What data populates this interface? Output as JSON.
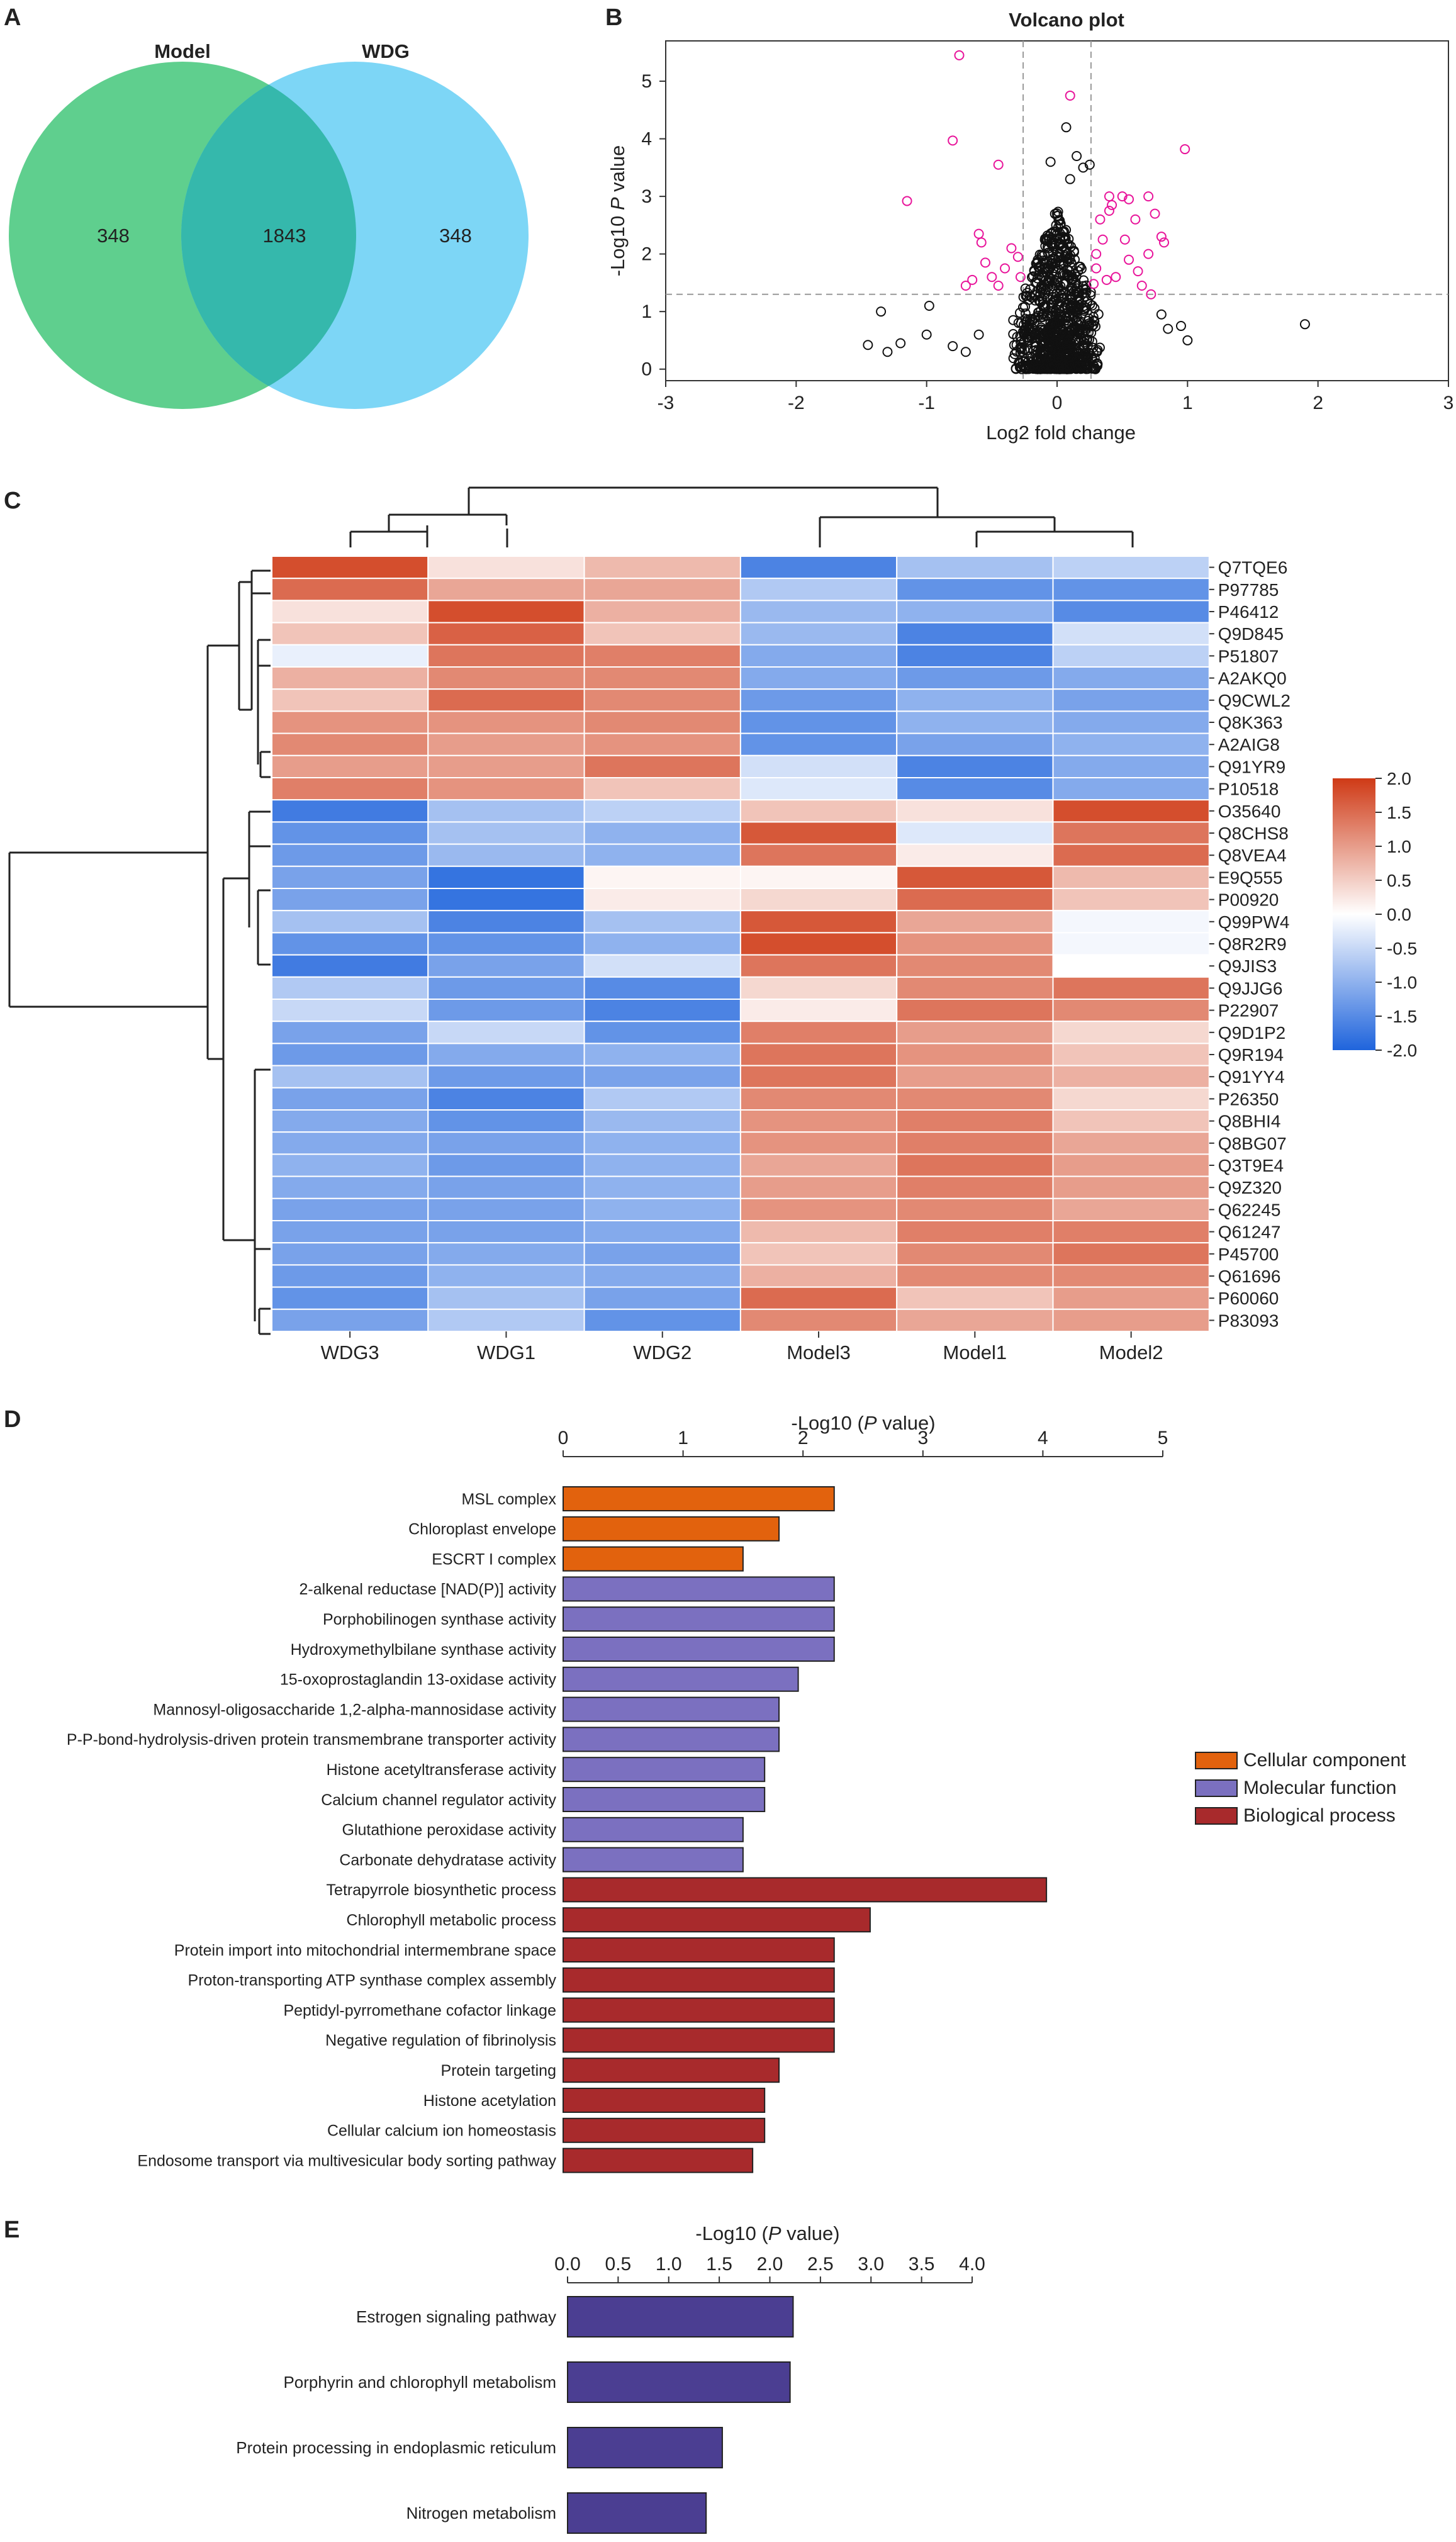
{
  "chart_data": [
    {
      "panel": "A",
      "type": "venn",
      "sets": [
        "Model",
        "WDG"
      ],
      "counts": {
        "only_left": "348",
        "intersection": "1843",
        "only_right": "348"
      },
      "colors": {
        "left": "#5fcf8e",
        "right": "#7dd6f6",
        "overlap": "#35b8ac"
      }
    },
    {
      "panel": "B",
      "type": "scatter",
      "title": "Volcano plot",
      "xlabel": "Log2 fold change",
      "ylabel_prefix": "-Log10 ",
      "ylabel_italic": "P",
      "ylabel_suffix": " value",
      "xlim": [
        -3,
        3
      ],
      "ylim": [
        -0.2,
        5.7
      ],
      "xticks": [
        "-3",
        "-2",
        "-1",
        "0",
        "1",
        "2",
        "3"
      ],
      "yticks": [
        "0",
        "1",
        "2",
        "3",
        "4",
        "5"
      ],
      "thresholds": {
        "fc_left": -0.26,
        "fc_right": 0.26,
        "p_line": 1.3
      },
      "significant": [
        [
          -0.75,
          5.45
        ],
        [
          0.1,
          4.75
        ],
        [
          -0.8,
          3.97
        ],
        [
          -0.45,
          3.55
        ],
        [
          0.98,
          3.82
        ],
        [
          -1.15,
          2.92
        ],
        [
          -0.6,
          2.35
        ],
        [
          -0.58,
          2.2
        ],
        [
          0.4,
          2.75
        ],
        [
          0.5,
          3.0
        ],
        [
          0.6,
          2.6
        ],
        [
          0.75,
          2.7
        ],
        [
          0.7,
          2.0
        ],
        [
          0.55,
          1.9
        ],
        [
          0.35,
          2.25
        ],
        [
          0.3,
          1.75
        ],
        [
          0.45,
          1.6
        ],
        [
          0.65,
          1.45
        ],
        [
          0.72,
          1.3
        ],
        [
          -0.5,
          1.6
        ],
        [
          -0.4,
          1.75
        ],
        [
          -0.3,
          1.95
        ],
        [
          -0.65,
          1.55
        ],
        [
          -0.7,
          1.45
        ],
        [
          -0.35,
          2.1
        ],
        [
          0.38,
          1.55
        ],
        [
          0.52,
          2.25
        ],
        [
          0.8,
          2.3
        ],
        [
          0.82,
          2.2
        ],
        [
          0.4,
          3.0
        ],
        [
          -0.55,
          1.85
        ],
        [
          0.3,
          2.0
        ],
        [
          0.42,
          2.85
        ],
        [
          0.62,
          1.7
        ],
        [
          0.28,
          1.48
        ],
        [
          -0.28,
          1.6
        ],
        [
          -0.45,
          1.45
        ],
        [
          0.55,
          2.95
        ],
        [
          0.33,
          2.6
        ],
        [
          0.7,
          3.0
        ]
      ],
      "nonsig_outliers": [
        [
          -1.45,
          0.42
        ],
        [
          -1.2,
          0.45
        ],
        [
          -1.35,
          1.0
        ],
        [
          -0.98,
          1.1
        ],
        [
          -1.0,
          0.6
        ],
        [
          -0.8,
          0.4
        ],
        [
          -0.6,
          0.6
        ],
        [
          1.9,
          0.78
        ],
        [
          1.0,
          0.5
        ],
        [
          0.95,
          0.75
        ],
        [
          0.85,
          0.7
        ],
        [
          0.8,
          0.95
        ],
        [
          0.07,
          4.2
        ],
        [
          0.15,
          3.7
        ],
        [
          0.2,
          3.5
        ],
        [
          -0.05,
          3.6
        ],
        [
          0.1,
          3.3
        ],
        [
          0.25,
          3.55
        ],
        [
          -1.3,
          0.3
        ],
        [
          -0.7,
          0.3
        ]
      ],
      "colors": {
        "significant": "#e8149a",
        "other": "#111111"
      }
    },
    {
      "panel": "C",
      "type": "heatmap",
      "columns": [
        "WDG3",
        "WDG1",
        "WDG2",
        "Model3",
        "Model1",
        "Model2"
      ],
      "rows": [
        "Q7TQE6",
        "P97785",
        "P46412",
        "Q9D845",
        "P51807",
        "A2AKQ0",
        "Q9CWL2",
        "Q8K363",
        "A2AIG8",
        "Q91YR9",
        "P10518",
        "O35640",
        "Q8CHS8",
        "Q8VEA4",
        "E9Q555",
        "P00920",
        "Q99PW4",
        "Q8R2R9",
        "Q9JIS3",
        "Q9JJG6",
        "P22907",
        "Q9D1P2",
        "Q9R194",
        "Q91YY4",
        "P26350",
        "Q8BHI4",
        "Q8BG07",
        "Q3T9E4",
        "Q9Z320",
        "Q62245",
        "Q61247",
        "P45700",
        "Q61696",
        "P60060",
        "P83093"
      ],
      "values": [
        [
          1.8,
          0.3,
          0.7,
          -1.6,
          -0.8,
          -0.6
        ],
        [
          1.5,
          0.9,
          0.9,
          -0.7,
          -1.4,
          -1.4
        ],
        [
          0.3,
          1.8,
          0.8,
          -0.9,
          -1.0,
          -1.5
        ],
        [
          0.6,
          1.6,
          0.6,
          -0.9,
          -1.6,
          -0.4
        ],
        [
          -0.2,
          1.4,
          1.3,
          -1.1,
          -1.6,
          -0.6
        ],
        [
          0.8,
          1.2,
          1.2,
          -1.1,
          -1.3,
          -1.1
        ],
        [
          0.6,
          1.5,
          1.2,
          -1.3,
          -1.0,
          -1.2
        ],
        [
          1.1,
          1.1,
          1.2,
          -1.4,
          -1.0,
          -1.1
        ],
        [
          1.2,
          1.0,
          1.1,
          -1.4,
          -1.2,
          -1.0
        ],
        [
          1.0,
          1.0,
          1.4,
          -0.4,
          -1.6,
          -1.1
        ],
        [
          1.3,
          1.1,
          0.6,
          -0.3,
          -1.5,
          -1.1
        ],
        [
          -1.7,
          -0.8,
          -0.6,
          0.6,
          0.3,
          1.8
        ],
        [
          -1.4,
          -0.8,
          -1.0,
          1.7,
          -0.3,
          1.4
        ],
        [
          -1.3,
          -0.9,
          -1.0,
          1.4,
          0.2,
          1.5
        ],
        [
          -1.2,
          -1.8,
          0.1,
          0.1,
          1.7,
          0.7
        ],
        [
          -1.2,
          -1.8,
          0.2,
          0.4,
          1.5,
          0.6
        ],
        [
          -0.8,
          -1.6,
          -0.8,
          1.7,
          0.9,
          -0.1
        ],
        [
          -1.4,
          -1.4,
          -1.0,
          1.8,
          1.1,
          -0.1
        ],
        [
          -1.7,
          -1.2,
          -0.4,
          1.4,
          1.2,
          0.0
        ],
        [
          -0.7,
          -1.3,
          -1.5,
          0.4,
          1.2,
          1.4
        ],
        [
          -0.5,
          -1.3,
          -1.6,
          0.2,
          1.4,
          1.2
        ],
        [
          -1.2,
          -0.5,
          -1.4,
          1.3,
          1.0,
          0.4
        ],
        [
          -1.3,
          -1.1,
          -1.0,
          1.4,
          1.1,
          0.6
        ],
        [
          -0.8,
          -1.3,
          -1.2,
          1.4,
          1.0,
          0.8
        ],
        [
          -1.2,
          -1.6,
          -0.7,
          1.2,
          1.2,
          0.4
        ],
        [
          -1.1,
          -1.4,
          -0.9,
          1.1,
          1.3,
          0.6
        ],
        [
          -1.1,
          -1.2,
          -1.0,
          1.1,
          1.3,
          0.9
        ],
        [
          -1.0,
          -1.3,
          -1.0,
          0.9,
          1.4,
          1.0
        ],
        [
          -1.1,
          -1.2,
          -1.0,
          1.0,
          1.3,
          1.0
        ],
        [
          -1.2,
          -1.2,
          -1.0,
          1.1,
          1.2,
          0.9
        ],
        [
          -1.2,
          -1.2,
          -1.1,
          0.7,
          1.3,
          1.3
        ],
        [
          -1.2,
          -1.1,
          -1.2,
          0.6,
          1.2,
          1.4
        ],
        [
          -1.3,
          -1.0,
          -1.1,
          0.8,
          1.2,
          1.2
        ],
        [
          -1.4,
          -0.8,
          -1.2,
          1.5,
          0.6,
          1.0
        ],
        [
          -1.2,
          -0.7,
          -1.4,
          1.2,
          0.9,
          1.0
        ]
      ],
      "colorbar": {
        "range": [
          -2,
          2
        ],
        "ticks": [
          "2.0",
          "1.5",
          "1.0",
          "0.5",
          "0.0",
          "-0.5",
          "-1.0",
          "-1.5",
          "-2.0"
        ],
        "low": "#1f64dc",
        "mid": "#ffffff",
        "high": "#cf3a16"
      }
    },
    {
      "panel": "D",
      "type": "bar",
      "orientation": "horizontal",
      "xlabel_prefix": "-Log10 (",
      "xlabel_italic": "P",
      "xlabel_suffix": " value)",
      "xlim": [
        0,
        5
      ],
      "xticks": [
        "0",
        "1",
        "2",
        "3",
        "4",
        "5"
      ],
      "categories": [
        "MSL complex",
        "Chloroplast envelope",
        "ESCRT I complex",
        "2-alkenal reductase [NAD(P)] activity",
        "Porphobilinogen synthase activity",
        "Hydroxymethylbilane synthase activity",
        "15-oxoprostaglandin 13-oxidase activity",
        "Mannosyl-oligosaccharide 1,2-alpha-mannosidase activity",
        "P-P-bond-hydrolysis-driven protein transmembrane transporter activity",
        "Histone acetyltransferase activity",
        "Calcium channel regulator activity",
        "Glutathione peroxidase activity",
        "Carbonate dehydratase activity",
        "Tetrapyrrole biosynthetic process",
        "Chlorophyll metabolic process",
        "Protein import into mitochondrial intermembrane space",
        "Proton-transporting ATP synthase complex assembly",
        "Peptidyl-pyrromethane cofactor linkage",
        "Negative regulation of fibrinolysis",
        "Protein targeting",
        "Histone acetylation",
        "Cellular calcium ion homeostasis",
        "Endosome transport via multivesicular body sorting pathway"
      ],
      "values": [
        2.26,
        1.8,
        1.5,
        2.26,
        2.26,
        2.26,
        1.96,
        1.8,
        1.8,
        1.68,
        1.68,
        1.5,
        1.5,
        4.03,
        2.56,
        2.26,
        2.26,
        2.26,
        2.26,
        1.8,
        1.68,
        1.68,
        1.58
      ],
      "groups": [
        "cc",
        "cc",
        "cc",
        "mf",
        "mf",
        "mf",
        "mf",
        "mf",
        "mf",
        "mf",
        "mf",
        "mf",
        "mf",
        "bp",
        "bp",
        "bp",
        "bp",
        "bp",
        "bp",
        "bp",
        "bp",
        "bp",
        "bp"
      ],
      "legend": [
        {
          "key": "cc",
          "label": "Cellular component",
          "color": "#e2620d"
        },
        {
          "key": "mf",
          "label": "Molecular function",
          "color": "#7b70c0"
        },
        {
          "key": "bp",
          "label": "Biological process",
          "color": "#a82a2c"
        }
      ]
    },
    {
      "panel": "E",
      "type": "bar",
      "orientation": "horizontal",
      "xlabel_prefix": "-Log10 (",
      "xlabel_italic": "P",
      "xlabel_suffix": " value)",
      "xlim": [
        0,
        4
      ],
      "xticks": [
        "0.0",
        "0.5",
        "1.0",
        "1.5",
        "2.0",
        "2.5",
        "3.0",
        "3.5",
        "4.0"
      ],
      "categories": [
        "Estrogen signaling pathway",
        "Porphyrin and chlorophyll metabolism",
        "Protein processing in endoplasmic reticulum",
        "Nitrogen metabolism"
      ],
      "values": [
        2.23,
        2.2,
        1.53,
        1.37
      ],
      "color": "#4b3e92"
    }
  ]
}
